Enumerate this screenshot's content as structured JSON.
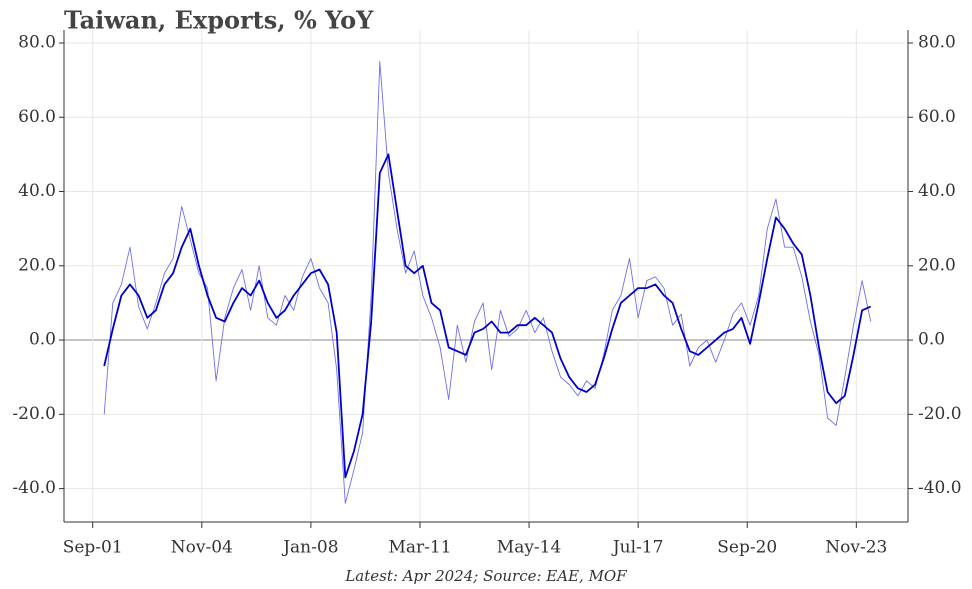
{
  "chart_data": {
    "type": "line",
    "title": "Taiwan, Exports, % YoY",
    "caption": "Latest: Apr 2024; Source: EAE, MOF",
    "x": [
      "2002-01",
      "2002-04",
      "2002-07",
      "2002-10",
      "2003-01",
      "2003-04",
      "2003-07",
      "2003-10",
      "2004-01",
      "2004-04",
      "2004-07",
      "2004-10",
      "2005-01",
      "2005-04",
      "2005-07",
      "2005-10",
      "2006-01",
      "2006-04",
      "2006-07",
      "2006-10",
      "2007-01",
      "2007-04",
      "2007-07",
      "2007-10",
      "2008-01",
      "2008-04",
      "2008-07",
      "2008-10",
      "2009-01",
      "2009-04",
      "2009-07",
      "2009-10",
      "2010-01",
      "2010-04",
      "2010-07",
      "2010-10",
      "2011-01",
      "2011-04",
      "2011-07",
      "2011-10",
      "2012-01",
      "2012-04",
      "2012-07",
      "2012-10",
      "2013-01",
      "2013-04",
      "2013-07",
      "2013-10",
      "2014-01",
      "2014-04",
      "2014-07",
      "2014-10",
      "2015-01",
      "2015-04",
      "2015-07",
      "2015-10",
      "2016-01",
      "2016-04",
      "2016-07",
      "2016-10",
      "2017-01",
      "2017-04",
      "2017-07",
      "2017-10",
      "2018-01",
      "2018-04",
      "2018-07",
      "2018-10",
      "2019-01",
      "2019-04",
      "2019-07",
      "2019-10",
      "2020-01",
      "2020-04",
      "2020-07",
      "2020-10",
      "2021-01",
      "2021-04",
      "2021-07",
      "2021-10",
      "2022-01",
      "2022-04",
      "2022-07",
      "2022-10",
      "2023-01",
      "2023-04",
      "2023-07",
      "2023-10",
      "2024-01",
      "2024-04"
    ],
    "series": [
      {
        "color": "#7070ee",
        "values": [
          -20,
          10,
          15,
          25,
          9,
          3,
          10,
          18,
          22,
          36,
          27,
          18,
          14,
          -11,
          6,
          14,
          19,
          8,
          20,
          6,
          4,
          12,
          8,
          17,
          22,
          14,
          10,
          -8,
          -44,
          -35,
          -25,
          12,
          75,
          45,
          30,
          18,
          24,
          12,
          6,
          -2,
          -16,
          4,
          -6,
          5,
          10,
          -8,
          8,
          1,
          3,
          8,
          2,
          6,
          -3,
          -10,
          -12,
          -15,
          -11,
          -13,
          -4,
          8,
          12,
          22,
          6,
          16,
          17,
          14,
          4,
          7,
          -7,
          -2,
          0,
          -6,
          0,
          7,
          10,
          4,
          12,
          30,
          38,
          25,
          25,
          17,
          5,
          -4,
          -21,
          -23,
          -10,
          4,
          16,
          5
        ]
      },
      {
        "color": "#0000cc",
        "values": [
          -7,
          3,
          12,
          15,
          12,
          6,
          8,
          15,
          18,
          25,
          30,
          20,
          12,
          6,
          5,
          10,
          14,
          12,
          16,
          10,
          6,
          8,
          12,
          15,
          18,
          19,
          15,
          2,
          -37,
          -30,
          -20,
          5,
          45,
          50,
          35,
          20,
          18,
          20,
          10,
          8,
          -2,
          -3,
          -4,
          2,
          3,
          5,
          2,
          2,
          4,
          4,
          6,
          4,
          2,
          -5,
          -10,
          -13,
          -14,
          -12,
          -5,
          3,
          10,
          12,
          14,
          14,
          15,
          12,
          10,
          3,
          -3,
          -4,
          -2,
          0,
          2,
          3,
          6,
          -1,
          10,
          22,
          33,
          30,
          26,
          23,
          12,
          -2,
          -14,
          -17,
          -15,
          -4,
          8,
          9
        ]
      }
    ],
    "xlim": [
      "2000-11",
      "2025-05"
    ],
    "xticks": [
      {
        "value": "2001-09",
        "label": "Sep-01"
      },
      {
        "value": "2004-11",
        "label": "Nov-04"
      },
      {
        "value": "2008-01",
        "label": "Jan-08"
      },
      {
        "value": "2011-03",
        "label": "Mar-11"
      },
      {
        "value": "2014-05",
        "label": "May-14"
      },
      {
        "value": "2017-07",
        "label": "Jul-17"
      },
      {
        "value": "2020-09",
        "label": "Sep-20"
      },
      {
        "value": "2023-11",
        "label": "Nov-23"
      }
    ],
    "ylim": [
      -49,
      83.5
    ],
    "yticks": [
      {
        "value": -40,
        "label": "-40.0"
      },
      {
        "value": -20,
        "label": "-20.0"
      },
      {
        "value": 0,
        "label": "0.0"
      },
      {
        "value": 20,
        "label": "20.0"
      },
      {
        "value": 40,
        "label": "40.0"
      },
      {
        "value": 60,
        "label": "60.0"
      },
      {
        "value": 80,
        "label": "80.0"
      }
    ],
    "grid": true
  }
}
